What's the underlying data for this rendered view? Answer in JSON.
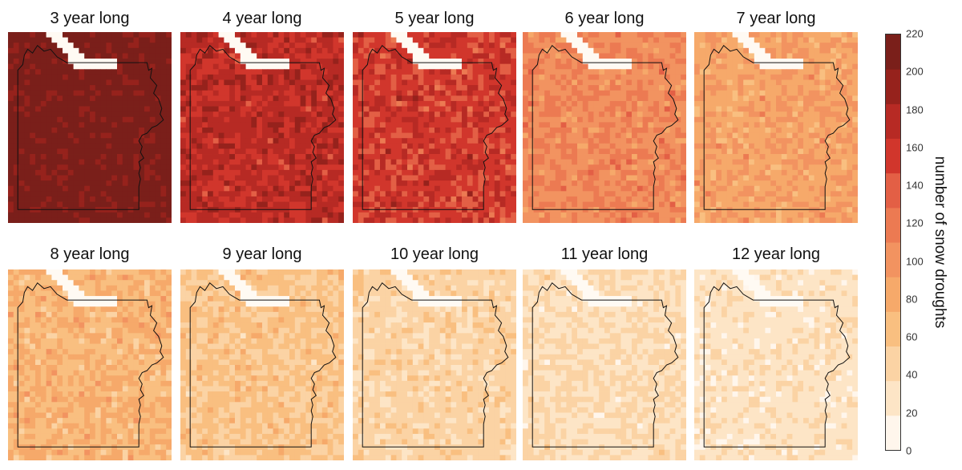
{
  "chart_data": {
    "type": "heatmap",
    "colorbar": {
      "label": "number of snow droughts",
      "min": 0,
      "max": 220,
      "ticks": [
        0,
        20,
        40,
        60,
        80,
        100,
        120,
        140,
        160,
        180,
        200,
        220
      ],
      "colors": [
        "#fff6ec",
        "#fde5c6",
        "#fbd3a4",
        "#f9bf80",
        "#f6a96a",
        "#f29360",
        "#ec7a52",
        "#e35f45",
        "#d1362c",
        "#b72a24",
        "#96221c",
        "#7a1f1a"
      ]
    },
    "panels": [
      {
        "title": "3 year long",
        "typical_count": 205,
        "spread": 6
      },
      {
        "title": "4 year long",
        "typical_count": 170,
        "spread": 22
      },
      {
        "title": "5 year long",
        "typical_count": 155,
        "spread": 25
      },
      {
        "title": "6 year long",
        "typical_count": 108,
        "spread": 20
      },
      {
        "title": "7 year long",
        "typical_count": 88,
        "spread": 20
      },
      {
        "title": "8 year long",
        "typical_count": 72,
        "spread": 20
      },
      {
        "title": "9 year long",
        "typical_count": 58,
        "spread": 18
      },
      {
        "title": "10 year long",
        "typical_count": 45,
        "spread": 16
      },
      {
        "title": "11 year long",
        "typical_count": 36,
        "spread": 16
      },
      {
        "title": "12 year long",
        "typical_count": 30,
        "spread": 16
      }
    ]
  }
}
